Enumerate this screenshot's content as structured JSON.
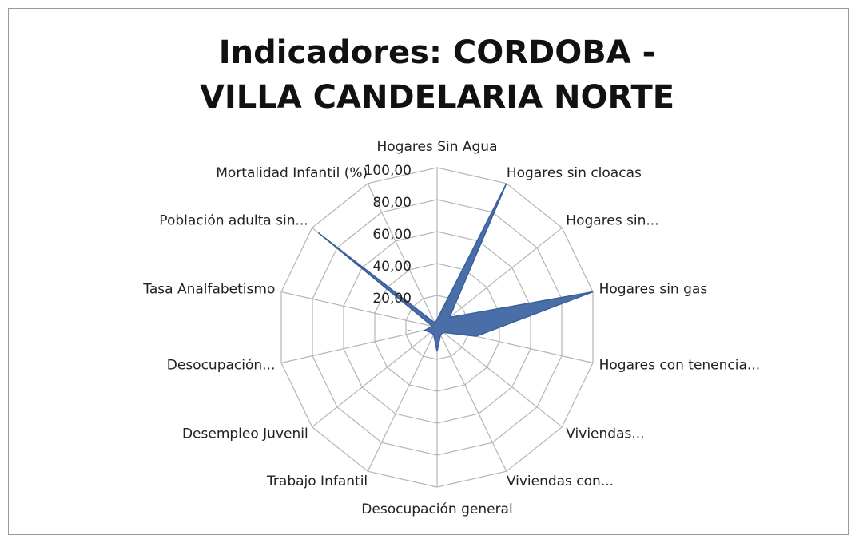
{
  "chart_data": {
    "type": "radar",
    "title": "Indicadores: CORDOBA - VILLA CANDELARIA NORTE",
    "categories": [
      "Hogares Sin Agua",
      "Hogares sin cloacas",
      "Hogares sin...",
      "Hogares sin gas",
      "Hogares con tenencia...",
      "Viviendas...",
      "Viviendas con...",
      "Desocupación general",
      "Trabajo Infantil",
      "Desempleo Juvenil",
      "Desocupación...",
      "Tasa Analfabetismo",
      "Población adulta  sin...",
      "Mortalidad Infantil (%)"
    ],
    "values": [
      5,
      100,
      10,
      100,
      25,
      5,
      5,
      15,
      5,
      5,
      8,
      3,
      95,
      3
    ],
    "color": "#4a6ea8",
    "ylim": [
      0,
      100
    ],
    "yticks": [
      {
        "value": 0,
        "label": "-"
      },
      {
        "value": 20,
        "label": "20,00"
      },
      {
        "value": 40,
        "label": "40,00"
      },
      {
        "value": 60,
        "label": "60,00"
      },
      {
        "value": 80,
        "label": "80,00"
      },
      {
        "value": 100,
        "label": "100,00"
      }
    ],
    "grid": true
  }
}
